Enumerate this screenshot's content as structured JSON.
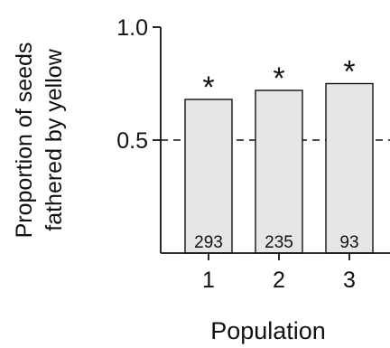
{
  "chart_data": {
    "type": "bar",
    "categories": [
      "1",
      "2",
      "3"
    ],
    "values": [
      0.68,
      0.72,
      0.75
    ],
    "bar_labels": [
      "293",
      "235",
      "93"
    ],
    "significance_marks": [
      "*",
      "*",
      "*"
    ],
    "reference_line": 0.5,
    "ylim": [
      0,
      1.0
    ],
    "yticks": [
      "0.5",
      "1.0"
    ],
    "ylabel_line1": "Proportion of seeds",
    "ylabel_line2": "fathered by yellow",
    "xlabel": "Population",
    "grid": false,
    "colors": {
      "bar_fill": "#e6e6e6",
      "bar_stroke": "#111111",
      "axis": "#111111"
    }
  }
}
